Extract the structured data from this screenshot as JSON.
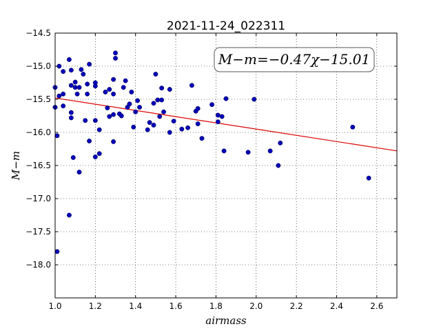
{
  "chart_data": {
    "type": "scatter",
    "title": "2021-11-24_022311",
    "xlabel": "airmass",
    "ylabel": "M−m",
    "xlim": [
      1.0,
      2.7
    ],
    "ylim": [
      -14.5,
      -18.5
    ],
    "y_inverted": true,
    "x_ticks": [
      1.0,
      1.2,
      1.4,
      1.6,
      1.8,
      2.0,
      2.2,
      2.4,
      2.6
    ],
    "x_tick_labels": [
      "1.0",
      "1.2",
      "1.4",
      "1.6",
      "1.8",
      "2.0",
      "2.2",
      "2.4",
      "2.6"
    ],
    "y_ticks": [
      -14.5,
      -15.0,
      -15.5,
      -16.0,
      -16.5,
      -17.0,
      -17.5,
      -18.0
    ],
    "y_tick_labels": [
      "−14.5",
      "−15.0",
      "−15.5",
      "−16.0",
      "−16.5",
      "−17.0",
      "−17.5",
      "−18.0"
    ],
    "grid": true,
    "annotation": "M−m=−0.47χ−15.01",
    "fit": {
      "slope": -0.47,
      "intercept": -15.01,
      "color": "#dd0000"
    },
    "point_color": "#0000bb",
    "points": [
      [
        1.0,
        -15.32
      ],
      [
        1.0,
        -15.62
      ],
      [
        1.01,
        -16.05
      ],
      [
        1.01,
        -17.8
      ],
      [
        1.02,
        -15.0
      ],
      [
        1.02,
        -15.45
      ],
      [
        1.04,
        -15.08
      ],
      [
        1.04,
        -15.42
      ],
      [
        1.04,
        -15.6
      ],
      [
        1.07,
        -14.9
      ],
      [
        1.07,
        -17.25
      ],
      [
        1.08,
        -15.06
      ],
      [
        1.08,
        -15.29
      ],
      [
        1.08,
        -15.7
      ],
      [
        1.08,
        -15.78
      ],
      [
        1.09,
        -16.38
      ],
      [
        1.1,
        -15.24
      ],
      [
        1.1,
        -15.32
      ],
      [
        1.11,
        -15.42
      ],
      [
        1.12,
        -15.32
      ],
      [
        1.12,
        -16.6
      ],
      [
        1.13,
        -15.05
      ],
      [
        1.14,
        -15.12
      ],
      [
        1.15,
        -15.82
      ],
      [
        1.16,
        -15.27
      ],
      [
        1.16,
        -15.42
      ],
      [
        1.17,
        -14.97
      ],
      [
        1.17,
        -16.13
      ],
      [
        1.2,
        -15.25
      ],
      [
        1.2,
        -15.3
      ],
      [
        1.2,
        -15.82
      ],
      [
        1.2,
        -16.37
      ],
      [
        1.22,
        -15.96
      ],
      [
        1.22,
        -16.32
      ],
      [
        1.25,
        -15.39
      ],
      [
        1.26,
        -15.63
      ],
      [
        1.27,
        -15.35
      ],
      [
        1.27,
        -15.76
      ],
      [
        1.29,
        -15.73
      ],
      [
        1.3,
        -14.8
      ],
      [
        1.3,
        -14.88
      ],
      [
        1.29,
        -15.2
      ],
      [
        1.29,
        -15.42
      ],
      [
        1.29,
        -16.14
      ],
      [
        1.32,
        -15.72
      ],
      [
        1.33,
        -15.75
      ],
      [
        1.34,
        -15.32
      ],
      [
        1.35,
        -15.22
      ],
      [
        1.36,
        -15.62
      ],
      [
        1.37,
        -15.57
      ],
      [
        1.38,
        -15.39
      ],
      [
        1.39,
        -15.92
      ],
      [
        1.4,
        -15.69
      ],
      [
        1.41,
        -15.52
      ],
      [
        1.42,
        -15.62
      ],
      [
        1.46,
        -15.96
      ],
      [
        1.47,
        -15.85
      ],
      [
        1.49,
        -15.56
      ],
      [
        1.49,
        -15.89
      ],
      [
        1.5,
        -15.12
      ],
      [
        1.51,
        -15.51
      ],
      [
        1.52,
        -15.76
      ],
      [
        1.53,
        -15.33
      ],
      [
        1.53,
        -15.51
      ],
      [
        1.54,
        -15.69
      ],
      [
        1.57,
        -15.35
      ],
      [
        1.57,
        -16.0
      ],
      [
        1.59,
        -15.83
      ],
      [
        1.63,
        -15.95
      ],
      [
        1.66,
        -15.93
      ],
      [
        1.68,
        -15.29
      ],
      [
        1.7,
        -15.68
      ],
      [
        1.71,
        -15.64
      ],
      [
        1.71,
        -15.87
      ],
      [
        1.73,
        -16.09
      ],
      [
        1.78,
        -15.58
      ],
      [
        1.81,
        -15.74
      ],
      [
        1.81,
        -15.84
      ],
      [
        1.83,
        -15.76
      ],
      [
        1.84,
        -16.28
      ],
      [
        1.85,
        -15.49
      ],
      [
        1.96,
        -16.3
      ],
      [
        1.99,
        -15.5
      ],
      [
        2.07,
        -16.28
      ],
      [
        2.11,
        -16.5
      ],
      [
        2.12,
        -16.16
      ],
      [
        2.48,
        -15.92
      ],
      [
        2.56,
        -16.69
      ]
    ]
  }
}
